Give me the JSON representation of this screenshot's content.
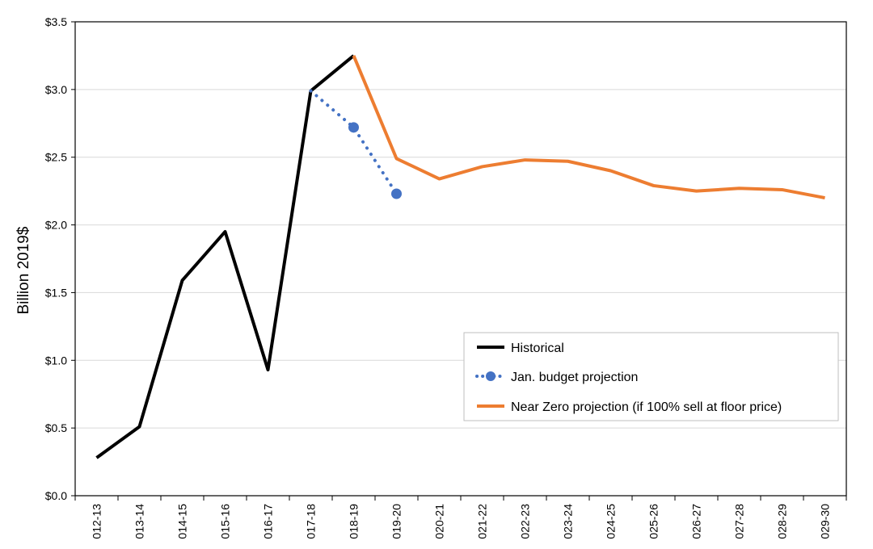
{
  "chart_data": {
    "type": "line",
    "ylabel": "Billion 2019$",
    "xlabel": "",
    "title": "",
    "ylim": [
      0,
      3.5
    ],
    "ytick_labels": [
      "$0.0",
      "$0.5",
      "$1.0",
      "$1.5",
      "$2.0",
      "$2.5",
      "$3.0",
      "$3.5"
    ],
    "ytick_values": [
      0,
      0.5,
      1.0,
      1.5,
      2.0,
      2.5,
      3.0,
      3.5
    ],
    "categories": [
      "012-13",
      "013-14",
      "014-15",
      "015-16",
      "016-17",
      "017-18",
      "018-19",
      "019-20",
      "020-21",
      "021-22",
      "022-23",
      "023-24",
      "024-25",
      "025-26",
      "026-27",
      "027-28",
      "028-29",
      "029-30"
    ],
    "grid": "horizontal",
    "legend_position": "lower-right",
    "series": [
      {
        "name": "Historical",
        "color": "#000000",
        "style": "solid",
        "values": [
          0.28,
          0.51,
          1.59,
          1.95,
          0.93,
          2.99,
          3.25,
          null,
          null,
          null,
          null,
          null,
          null,
          null,
          null,
          null,
          null,
          null
        ]
      },
      {
        "name": "Jan. budget projection",
        "color": "#4472C4",
        "style": "dotted",
        "markers": "circle",
        "values": [
          null,
          null,
          null,
          null,
          null,
          2.99,
          2.72,
          2.23,
          null,
          null,
          null,
          null,
          null,
          null,
          null,
          null,
          null,
          null
        ]
      },
      {
        "name": "Near Zero projection (if 100% sell at floor price)",
        "color": "#ED7D31",
        "style": "solid",
        "values": [
          null,
          null,
          null,
          null,
          null,
          null,
          3.25,
          2.49,
          2.34,
          2.43,
          2.48,
          2.47,
          2.4,
          2.29,
          2.25,
          2.27,
          2.26,
          2.2
        ]
      }
    ]
  }
}
